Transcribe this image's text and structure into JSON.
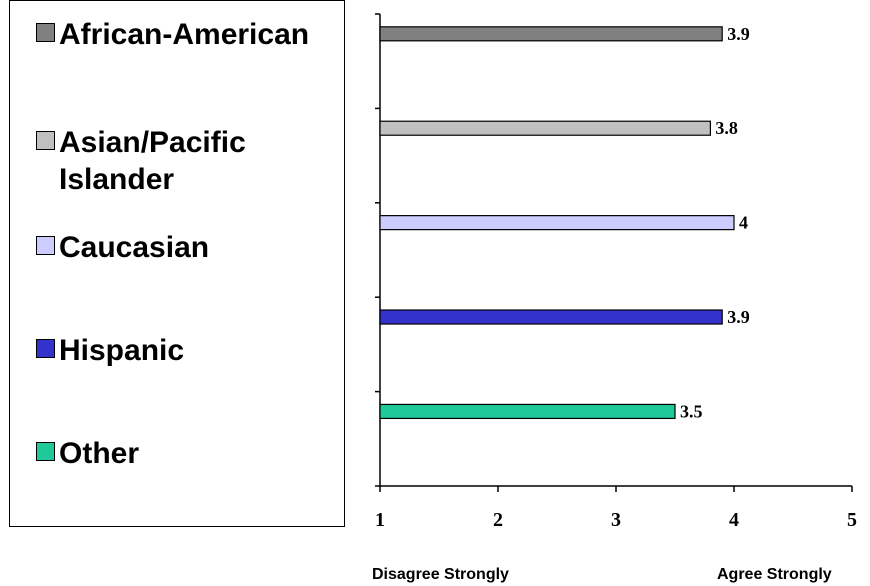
{
  "chart_data": {
    "type": "bar",
    "orientation": "horizontal",
    "categories": [
      "African-American",
      "Asian/Pacific Islander",
      "Caucasian",
      "Hispanic",
      "Other"
    ],
    "values": [
      3.9,
      3.8,
      4,
      3.9,
      3.5
    ],
    "value_labels": [
      "3.9",
      "3.8",
      "4",
      "3.9",
      "3.5"
    ],
    "colors": [
      "#808080",
      "#c0c0c0",
      "#ccccff",
      "#3333cc",
      "#1fc99a"
    ],
    "xlim": [
      1,
      5
    ],
    "x_ticks": [
      "1",
      "2",
      "3",
      "4",
      "5"
    ],
    "x_extreme_labels": {
      "low": "Disagree Strongly",
      "high": "Agree Strongly"
    },
    "grid": false,
    "legend_position": "left"
  },
  "legend": {
    "items": [
      {
        "label": "African-American",
        "color": "#808080"
      },
      {
        "label": "Asian/Pacific Islander",
        "color": "#c0c0c0"
      },
      {
        "label": "Caucasian",
        "color": "#ccccff"
      },
      {
        "label": "Hispanic",
        "color": "#3333cc"
      },
      {
        "label": "Other",
        "color": "#1fc99a"
      }
    ]
  }
}
